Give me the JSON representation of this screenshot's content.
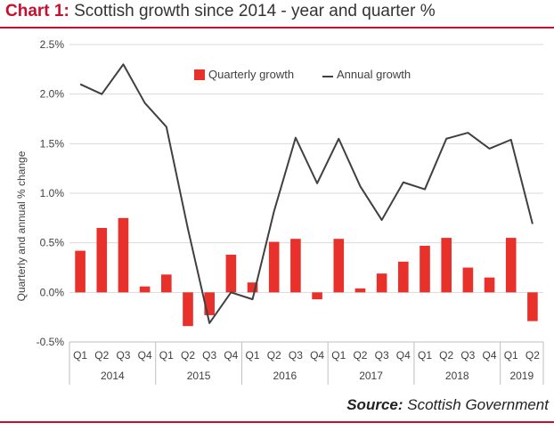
{
  "header": {
    "title_prefix": "Chart 1:",
    "title_text": "Scottish growth since 2014 - year and quarter %"
  },
  "footer": {
    "source_label": "Source:",
    "source_text": "Scottish Government"
  },
  "colors": {
    "accent": "#c8102e",
    "bar": "#e8312b",
    "line": "#404040",
    "grid": "#d9d9d9"
  },
  "chart_data": {
    "type": "bar",
    "title": "",
    "xlabel": "",
    "ylabel": "Quarterly and annual  % change",
    "ylim": [
      -0.5,
      2.5
    ],
    "yticks": [
      "-0.5%",
      "0.0%",
      "0.5%",
      "1.0%",
      "1.5%",
      "2.0%",
      "2.5%"
    ],
    "grid": true,
    "legend_position": "top",
    "categories": [
      "Q1",
      "Q2",
      "Q3",
      "Q4",
      "Q1",
      "Q2",
      "Q3",
      "Q4",
      "Q1",
      "Q2",
      "Q3",
      "Q4",
      "Q1",
      "Q2",
      "Q3",
      "Q4",
      "Q1",
      "Q2",
      "Q3",
      "Q4",
      "Q1",
      "Q2"
    ],
    "year_groups": [
      {
        "year": "2014",
        "quarters": 4
      },
      {
        "year": "2015",
        "quarters": 4
      },
      {
        "year": "2016",
        "quarters": 4
      },
      {
        "year": "2017",
        "quarters": 4
      },
      {
        "year": "2018",
        "quarters": 4
      },
      {
        "year": "2019",
        "quarters": 2
      }
    ],
    "series": [
      {
        "name": "Quarterly growth",
        "type": "bar",
        "values": [
          0.42,
          0.65,
          0.75,
          0.06,
          0.18,
          -0.34,
          -0.23,
          0.38,
          0.1,
          0.51,
          0.54,
          -0.07,
          0.54,
          0.04,
          0.19,
          0.31,
          0.47,
          0.55,
          0.25,
          0.15,
          0.55,
          -0.29
        ]
      },
      {
        "name": "Annual growth",
        "type": "line",
        "values": [
          2.1,
          2.0,
          2.3,
          1.91,
          1.67,
          0.64,
          -0.31,
          0.0,
          -0.07,
          0.82,
          1.56,
          1.1,
          1.55,
          1.07,
          0.73,
          1.11,
          1.04,
          1.55,
          1.61,
          1.45,
          1.54,
          0.69
        ]
      }
    ]
  }
}
